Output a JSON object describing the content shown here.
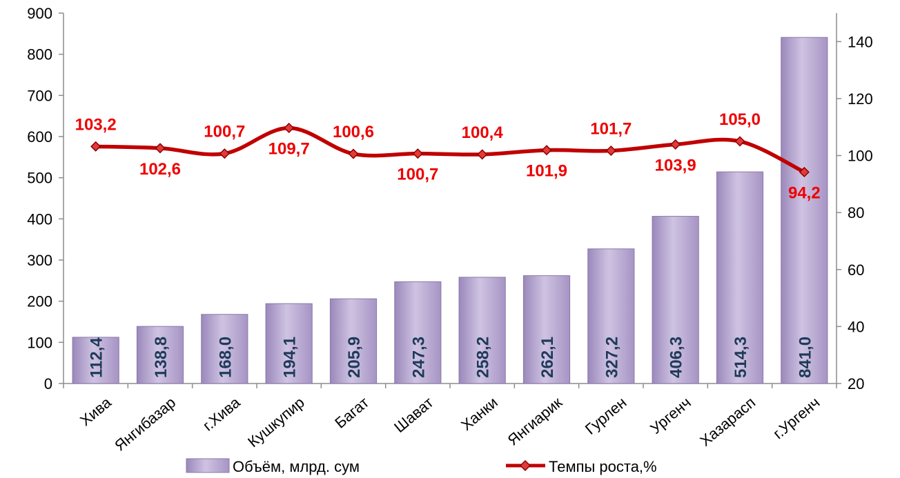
{
  "chart_data": {
    "type": "bar",
    "categories": [
      "Хива",
      "Янгибазар",
      "г.Хива",
      "Кушкупир",
      "Багат",
      "Шават",
      "Ханки",
      "Янгиарик",
      "Гурлен",
      "Ургенч",
      "Хазарасп",
      "г.Ургенч"
    ],
    "series": [
      {
        "name": "Объём, млрд. сум",
        "type": "bar",
        "axis": "left",
        "values": [
          112.4,
          138.8,
          168.0,
          194.1,
          205.9,
          247.3,
          258.2,
          262.1,
          327.2,
          406.3,
          514.3,
          841.0
        ],
        "labels": [
          "112,4",
          "138,8",
          "168,0",
          "194,1",
          "205,9",
          "247,3",
          "258,2",
          "262,1",
          "327,2",
          "406,3",
          "514,3",
          "841,0"
        ],
        "color": "#b3a3cc"
      },
      {
        "name": "Темпы роста,%",
        "type": "line",
        "axis": "right",
        "values": [
          103.2,
          102.6,
          100.7,
          109.7,
          100.6,
          100.7,
          100.4,
          101.9,
          101.7,
          103.9,
          105.0,
          94.2
        ],
        "labels": [
          "103,2",
          "102,6",
          "100,7",
          "109,7",
          "100,6",
          "100,7",
          "100,4",
          "101,9",
          "101,7",
          "103,9",
          "105,0",
          "94,2"
        ],
        "color": "#c00000"
      }
    ],
    "y_left": {
      "min": 0,
      "max": 900,
      "ticks": [
        "0",
        "100",
        "200",
        "300",
        "400",
        "500",
        "600",
        "700",
        "800",
        "900"
      ]
    },
    "y_right": {
      "min": 20,
      "max": 150,
      "ticks": [
        "20",
        "40",
        "60",
        "80",
        "100",
        "120",
        "140"
      ]
    },
    "legend": "bottom",
    "grid": false
  }
}
